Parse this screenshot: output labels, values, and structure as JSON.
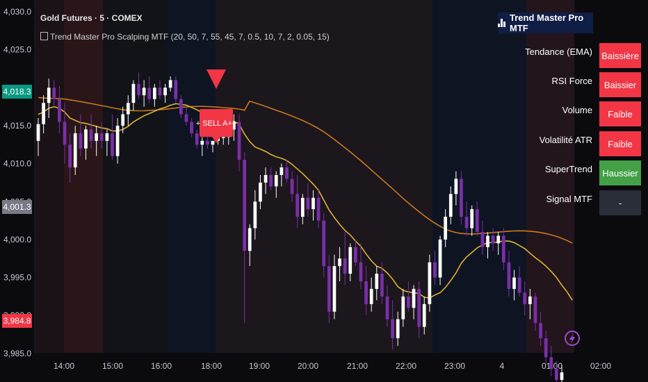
{
  "header": {
    "symbol_title": "Gold Futures · 5 · COMEX",
    "indicator_title": "Trend Master Pro Scalping MTF (20, 50, 7, 55, 45, 7, 0.5, 10, 7, 2, 0.05, 15)"
  },
  "table": {
    "title": "Trend Master Pro MTF",
    "rows": [
      {
        "label": "Tendance (EMA)",
        "value": "Baissière",
        "color": "#f23645"
      },
      {
        "label": "RSI Force",
        "value": "Baissier",
        "color": "#f23645"
      },
      {
        "label": "Volume",
        "value": "Faible",
        "color": "#f23645"
      },
      {
        "label": "Volatilité ATR",
        "value": "Faible",
        "color": "#f23645"
      },
      {
        "label": "SuperTrend",
        "value": "Haussier",
        "color": "#43a047"
      },
      {
        "label": "Signal MTF",
        "value": "-",
        "color": "#2a2e39"
      }
    ]
  },
  "price_badges": [
    {
      "price": "4,018.3",
      "color": "#089981"
    },
    {
      "price": "4,001.3",
      "color": "#787b86"
    },
    {
      "price": "3,984.8",
      "color": "#f23645"
    }
  ],
  "signal_label": "+ SELL A++",
  "chart_data": {
    "type": "candlestick",
    "title": "Gold Futures · 5 · COMEX",
    "xlabel": "",
    "ylabel": "",
    "ylim": [
      3980.0,
      4031.0
    ],
    "y_ticks": [
      "4,030.0",
      "4,025.0",
      "4,020.0",
      "4,015.0",
      "4,010.0",
      "4,005.0",
      "4,000.0",
      "3,995.0",
      "3,990.0",
      "3,985.0"
    ],
    "x_ticks": [
      "14:00",
      "15:00",
      "16:00",
      "18:00",
      "19:00",
      "20:00",
      "21:00",
      "22:00",
      "23:00",
      "4",
      "01:00",
      "02:00"
    ],
    "candles": [
      {
        "o": 4013.0,
        "h": 4016.0,
        "l": 4011.0,
        "c": 4015.2
      },
      {
        "o": 4015.2,
        "h": 4019.0,
        "l": 4014.0,
        "c": 4018.0
      },
      {
        "o": 4018.0,
        "h": 4021.2,
        "l": 4016.0,
        "c": 4020.0
      },
      {
        "o": 4020.0,
        "h": 4021.0,
        "l": 4017.5,
        "c": 4018.5
      },
      {
        "o": 4018.5,
        "h": 4020.2,
        "l": 4014.0,
        "c": 4015.5
      },
      {
        "o": 4015.5,
        "h": 4018.0,
        "l": 4010.0,
        "c": 4012.5
      },
      {
        "o": 4012.5,
        "h": 4014.0,
        "l": 4007.5,
        "c": 4009.5
      },
      {
        "o": 4009.5,
        "h": 4015.0,
        "l": 4008.5,
        "c": 4014.0
      },
      {
        "o": 4014.0,
        "h": 4016.5,
        "l": 4011.0,
        "c": 4012.0
      },
      {
        "o": 4012.0,
        "h": 4015.0,
        "l": 4010.5,
        "c": 4014.5
      },
      {
        "o": 4014.5,
        "h": 4016.5,
        "l": 4012.0,
        "c": 4013.0
      },
      {
        "o": 4013.0,
        "h": 4015.0,
        "l": 4011.0,
        "c": 4014.0
      },
      {
        "o": 4014.0,
        "h": 4015.5,
        "l": 4012.0,
        "c": 4013.0
      },
      {
        "o": 4013.0,
        "h": 4014.5,
        "l": 4011.0,
        "c": 4014.0
      },
      {
        "o": 4014.0,
        "h": 4016.5,
        "l": 4010.5,
        "c": 4011.0
      },
      {
        "o": 4011.0,
        "h": 4016.0,
        "l": 4010.0,
        "c": 4015.0
      },
      {
        "o": 4015.0,
        "h": 4017.5,
        "l": 4014.0,
        "c": 4016.5
      },
      {
        "o": 4016.5,
        "h": 4019.0,
        "l": 4015.0,
        "c": 4018.0
      },
      {
        "o": 4018.0,
        "h": 4021.0,
        "l": 4017.0,
        "c": 4020.5
      },
      {
        "o": 4020.5,
        "h": 4022.0,
        "l": 4018.5,
        "c": 4019.0
      },
      {
        "o": 4019.0,
        "h": 4021.0,
        "l": 4017.5,
        "c": 4020.0
      },
      {
        "o": 4020.0,
        "h": 4021.5,
        "l": 4018.0,
        "c": 4018.5
      },
      {
        "o": 4018.5,
        "h": 4020.5,
        "l": 4017.5,
        "c": 4020.0
      },
      {
        "o": 4020.0,
        "h": 4021.0,
        "l": 4018.5,
        "c": 4019.0
      },
      {
        "o": 4019.0,
        "h": 4020.5,
        "l": 4018.0,
        "c": 4020.0
      },
      {
        "o": 4020.0,
        "h": 4021.5,
        "l": 4019.5,
        "c": 4021.0
      },
      {
        "o": 4021.0,
        "h": 4021.5,
        "l": 4018.0,
        "c": 4018.5
      },
      {
        "o": 4018.5,
        "h": 4019.0,
        "l": 4016.0,
        "c": 4016.5
      },
      {
        "o": 4016.5,
        "h": 4017.5,
        "l": 4015.0,
        "c": 4015.5
      },
      {
        "o": 4015.5,
        "h": 4016.0,
        "l": 4013.5,
        "c": 4014.0
      },
      {
        "o": 4014.0,
        "h": 4014.5,
        "l": 4012.0,
        "c": 4012.5
      },
      {
        "o": 4012.5,
        "h": 4013.5,
        "l": 4011.0,
        "c": 4013.0
      },
      {
        "o": 4013.0,
        "h": 4014.0,
        "l": 4012.0,
        "c": 4012.5
      },
      {
        "o": 4012.5,
        "h": 4013.0,
        "l": 4011.5,
        "c": 4013.0
      },
      {
        "o": 4013.0,
        "h": 4014.0,
        "l": 4012.5,
        "c": 4013.5
      },
      {
        "o": 4013.5,
        "h": 4014.5,
        "l": 4012.5,
        "c": 4013.5
      },
      {
        "o": 4013.5,
        "h": 4015.0,
        "l": 4012.5,
        "c": 4014.5
      },
      {
        "o": 4014.5,
        "h": 4016.5,
        "l": 4013.0,
        "c": 4015.5
      },
      {
        "o": 4015.5,
        "h": 4016.5,
        "l": 4009.0,
        "c": 4010.5
      },
      {
        "o": 4010.5,
        "h": 4011.5,
        "l": 3989.0,
        "c": 3998.5
      },
      {
        "o": 3998.5,
        "h": 4002.0,
        "l": 3996.5,
        "c": 4001.5
      },
      {
        "o": 4001.5,
        "h": 4006.5,
        "l": 4000.0,
        "c": 4005.0
      },
      {
        "o": 4005.0,
        "h": 4008.5,
        "l": 4004.0,
        "c": 4007.5
      },
      {
        "o": 4007.5,
        "h": 4009.5,
        "l": 4006.0,
        "c": 4008.5
      },
      {
        "o": 4008.5,
        "h": 4009.5,
        "l": 4006.5,
        "c": 4007.0
      },
      {
        "o": 4007.0,
        "h": 4009.0,
        "l": 4005.5,
        "c": 4008.5
      },
      {
        "o": 4008.5,
        "h": 4010.0,
        "l": 4007.0,
        "c": 4009.5
      },
      {
        "o": 4009.5,
        "h": 4010.5,
        "l": 4007.5,
        "c": 4008.0
      },
      {
        "o": 4008.0,
        "h": 4009.0,
        "l": 4005.0,
        "c": 4006.0
      },
      {
        "o": 4006.0,
        "h": 4008.5,
        "l": 4001.5,
        "c": 4003.0
      },
      {
        "o": 4003.0,
        "h": 4006.0,
        "l": 4002.0,
        "c": 4005.5
      },
      {
        "o": 4005.5,
        "h": 4007.5,
        "l": 4003.0,
        "c": 4004.0
      },
      {
        "o": 4004.0,
        "h": 4006.5,
        "l": 4002.5,
        "c": 4005.5
      },
      {
        "o": 4005.5,
        "h": 4006.5,
        "l": 4001.5,
        "c": 4002.5
      },
      {
        "o": 4002.5,
        "h": 4003.5,
        "l": 3995.0,
        "c": 3996.5
      },
      {
        "o": 3996.5,
        "h": 3998.0,
        "l": 3989.0,
        "c": 3990.5
      },
      {
        "o": 3990.5,
        "h": 3998.0,
        "l": 3989.5,
        "c": 3996.5
      },
      {
        "o": 3996.5,
        "h": 3999.0,
        "l": 3994.5,
        "c": 3997.5
      },
      {
        "o": 3997.5,
        "h": 4001.0,
        "l": 3994.0,
        "c": 3995.5
      },
      {
        "o": 3995.5,
        "h": 3999.5,
        "l": 3994.5,
        "c": 3999.0
      },
      {
        "o": 3999.0,
        "h": 4000.0,
        "l": 3996.5,
        "c": 3997.0
      },
      {
        "o": 3997.0,
        "h": 3999.5,
        "l": 3993.5,
        "c": 3994.5
      },
      {
        "o": 3994.5,
        "h": 3996.5,
        "l": 3990.0,
        "c": 3991.5
      },
      {
        "o": 3991.5,
        "h": 3995.0,
        "l": 3990.5,
        "c": 3993.5
      },
      {
        "o": 3993.5,
        "h": 3996.5,
        "l": 3992.0,
        "c": 3995.5
      },
      {
        "o": 3995.5,
        "h": 3997.0,
        "l": 3991.5,
        "c": 3992.5
      },
      {
        "o": 3992.5,
        "h": 3994.0,
        "l": 3988.5,
        "c": 3989.5
      },
      {
        "o": 3989.5,
        "h": 3992.0,
        "l": 3985.5,
        "c": 3987.0
      },
      {
        "o": 3987.0,
        "h": 3990.5,
        "l": 3986.0,
        "c": 3989.5
      },
      {
        "o": 3989.5,
        "h": 3993.5,
        "l": 3988.5,
        "c": 3992.5
      },
      {
        "o": 3992.5,
        "h": 3994.5,
        "l": 3990.5,
        "c": 3991.0
      },
      {
        "o": 3991.0,
        "h": 3994.0,
        "l": 3989.5,
        "c": 3993.5
      },
      {
        "o": 3993.5,
        "h": 3994.5,
        "l": 3987.0,
        "c": 3988.5
      },
      {
        "o": 3988.5,
        "h": 3992.5,
        "l": 3987.5,
        "c": 3991.5
      },
      {
        "o": 3991.5,
        "h": 3998.0,
        "l": 3990.5,
        "c": 3997.0
      },
      {
        "o": 3997.0,
        "h": 3998.5,
        "l": 3994.0,
        "c": 3995.0
      },
      {
        "o": 3995.0,
        "h": 4000.5,
        "l": 3994.0,
        "c": 4000.0
      },
      {
        "o": 4000.0,
        "h": 4004.0,
        "l": 3999.0,
        "c": 4003.0
      },
      {
        "o": 4003.0,
        "h": 4007.0,
        "l": 4002.0,
        "c": 4006.0
      },
      {
        "o": 4006.0,
        "h": 4009.0,
        "l": 4004.5,
        "c": 4008.0
      },
      {
        "o": 4008.0,
        "h": 4009.0,
        "l": 4002.0,
        "c": 4003.0
      },
      {
        "o": 4003.0,
        "h": 4005.0,
        "l": 4000.5,
        "c": 4001.5
      },
      {
        "o": 4001.5,
        "h": 4004.5,
        "l": 4000.5,
        "c": 4004.0
      },
      {
        "o": 4004.0,
        "h": 4005.0,
        "l": 4000.5,
        "c": 4001.0
      },
      {
        "o": 4001.0,
        "h": 4002.5,
        "l": 3998.0,
        "c": 3999.0
      },
      {
        "o": 3999.0,
        "h": 4001.0,
        "l": 3997.5,
        "c": 4000.5
      },
      {
        "o": 4000.5,
        "h": 4001.5,
        "l": 3998.5,
        "c": 3999.5
      },
      {
        "o": 3999.5,
        "h": 4001.0,
        "l": 3998.0,
        "c": 4000.5
      },
      {
        "o": 4000.5,
        "h": 4001.5,
        "l": 3996.0,
        "c": 3997.0
      },
      {
        "o": 3997.0,
        "h": 3998.5,
        "l": 3992.5,
        "c": 3993.5
      },
      {
        "o": 3993.5,
        "h": 3996.0,
        "l": 3992.0,
        "c": 3995.0
      },
      {
        "o": 3995.0,
        "h": 3996.5,
        "l": 3992.5,
        "c": 3993.0
      },
      {
        "o": 3993.0,
        "h": 3994.5,
        "l": 3990.0,
        "c": 3991.5
      },
      {
        "o": 3991.5,
        "h": 3993.5,
        "l": 3989.5,
        "c": 3992.5
      },
      {
        "o": 3992.5,
        "h": 3993.0,
        "l": 3988.0,
        "c": 3989.0
      },
      {
        "o": 3989.0,
        "h": 3990.5,
        "l": 3986.0,
        "c": 3987.0
      },
      {
        "o": 3987.0,
        "h": 3988.0,
        "l": 3983.5,
        "c": 3984.5
      },
      {
        "o": 3984.5,
        "h": 3986.0,
        "l": 3982.0,
        "c": 3983.0
      },
      {
        "o": 3983.0,
        "h": 3984.0,
        "l": 3980.5,
        "c": 3981.5
      },
      {
        "o": 3981.5,
        "h": 3983.5,
        "l": 3980.0,
        "c": 3982.5
      }
    ],
    "ema_fast": [
      4016.5,
      4016.8,
      4017.3,
      4017.5,
      4017.3,
      4016.8,
      4016.0,
      4015.7,
      4015.4,
      4015.3,
      4015.1,
      4014.9,
      4014.7,
      4014.6,
      4014.3,
      4014.3,
      4014.5,
      4014.9,
      4015.5,
      4015.9,
      4016.3,
      4016.6,
      4016.9,
      4017.2,
      4017.4,
      4017.7,
      4017.9,
      4017.8,
      4017.7,
      4017.4,
      4017.1,
      4016.7,
      4016.4,
      4016.1,
      4015.9,
      4015.7,
      4015.6,
      4015.6,
      4015.2,
      4013.9,
      4012.9,
      4012.2,
      4011.9,
      4011.6,
      4011.2,
      4010.9,
      4010.7,
      4010.4,
      4009.9,
      4009.3,
      4008.7,
      4008.0,
      4007.3,
      4006.5,
      4005.2,
      4003.9,
      4002.9,
      4002.0,
      4001.2,
      4000.6,
      3999.8,
      3999.1,
      3998.1,
      3997.2,
      3996.5,
      3996.2,
      3995.6,
      3994.8,
      3993.8,
      3993.3,
      3993.1,
      3993.0,
      3992.9,
      3992.4,
      3992.3,
      3992.7,
      3993.0,
      3993.7,
      3994.6,
      3995.6,
      3996.9,
      3997.7,
      3998.3,
      3998.9,
      3999.3,
      3999.6,
      3999.6,
      3999.7,
      3999.8,
      3999.8,
      3999.6,
      3999.2,
      3998.8,
      3998.2,
      3997.6,
      3997.1,
      3996.5,
      3995.8,
      3995.0,
      3994.0,
      3993.1,
      3992.0
    ]
  }
}
